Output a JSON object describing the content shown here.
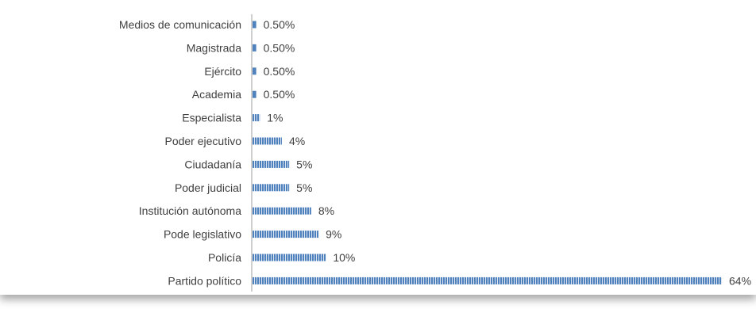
{
  "chart_data": {
    "type": "bar",
    "orientation": "horizontal",
    "categories": [
      "Medios de comunicación",
      "Magistrada",
      "Ejército",
      "Academia",
      "Especialista",
      "Poder ejecutivo",
      "Ciudadanía",
      "Poder judicial",
      "Institución autónoma",
      "Pode legislativo",
      "Policía",
      "Partido político"
    ],
    "values": [
      0.5,
      0.5,
      0.5,
      0.5,
      1,
      4,
      5,
      5,
      8,
      9,
      10,
      64
    ],
    "value_labels": [
      "0.50%",
      "0.50%",
      "0.50%",
      "0.50%",
      "1%",
      "4%",
      "5%",
      "5%",
      "8%",
      "9%",
      "10%",
      "64%"
    ],
    "unit": "%",
    "bar_color": "#4f81bd",
    "bar_pattern": "vertical-stripes",
    "grid": false,
    "legend": "none"
  }
}
